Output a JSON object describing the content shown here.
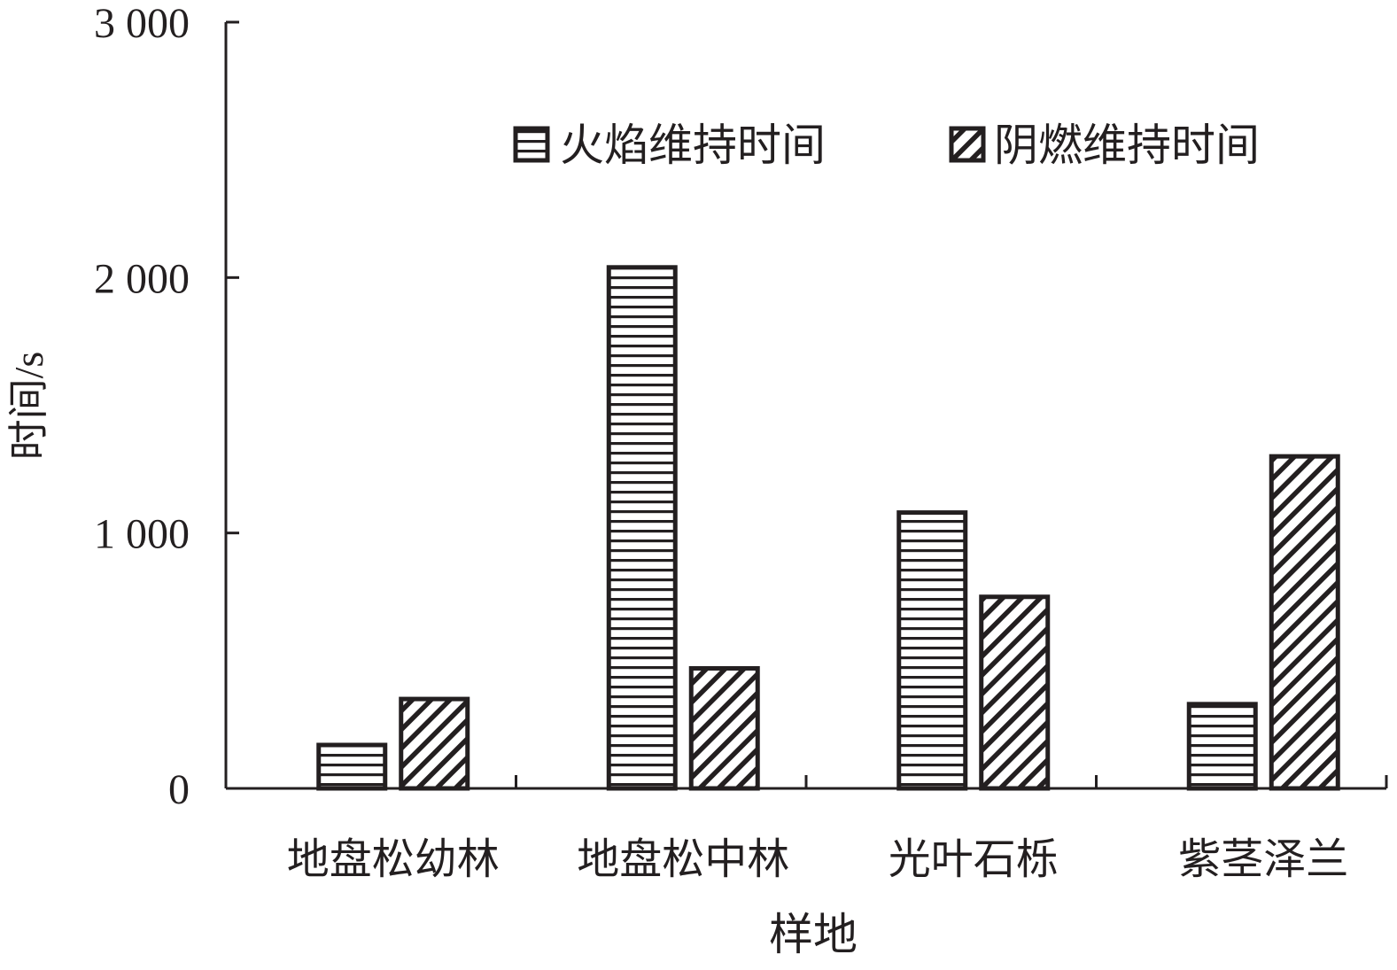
{
  "chart_data": {
    "type": "bar",
    "categories": [
      "地盘松幼林",
      "地盘松中林",
      "光叶石栎",
      "紫茎泽兰"
    ],
    "series": [
      {
        "name": "火焰维持时间",
        "pattern": "horizontal-lines",
        "values": [
          170,
          2040,
          1080,
          330
        ]
      },
      {
        "name": "阴燃维持时间",
        "pattern": "diagonal-hatch",
        "values": [
          350,
          470,
          750,
          1300
        ]
      }
    ],
    "xlabel": "样地",
    "ylabel": "时间/s",
    "ylim": [
      0,
      3000
    ],
    "yticks": [
      0,
      1000,
      2000,
      3000
    ],
    "ytick_labels": [
      "0",
      "1 000",
      "2 000",
      "3 000"
    ],
    "legend_position": "top-center",
    "grid": false,
    "colors": {
      "ink": "#231f20",
      "background": "#ffffff"
    }
  }
}
